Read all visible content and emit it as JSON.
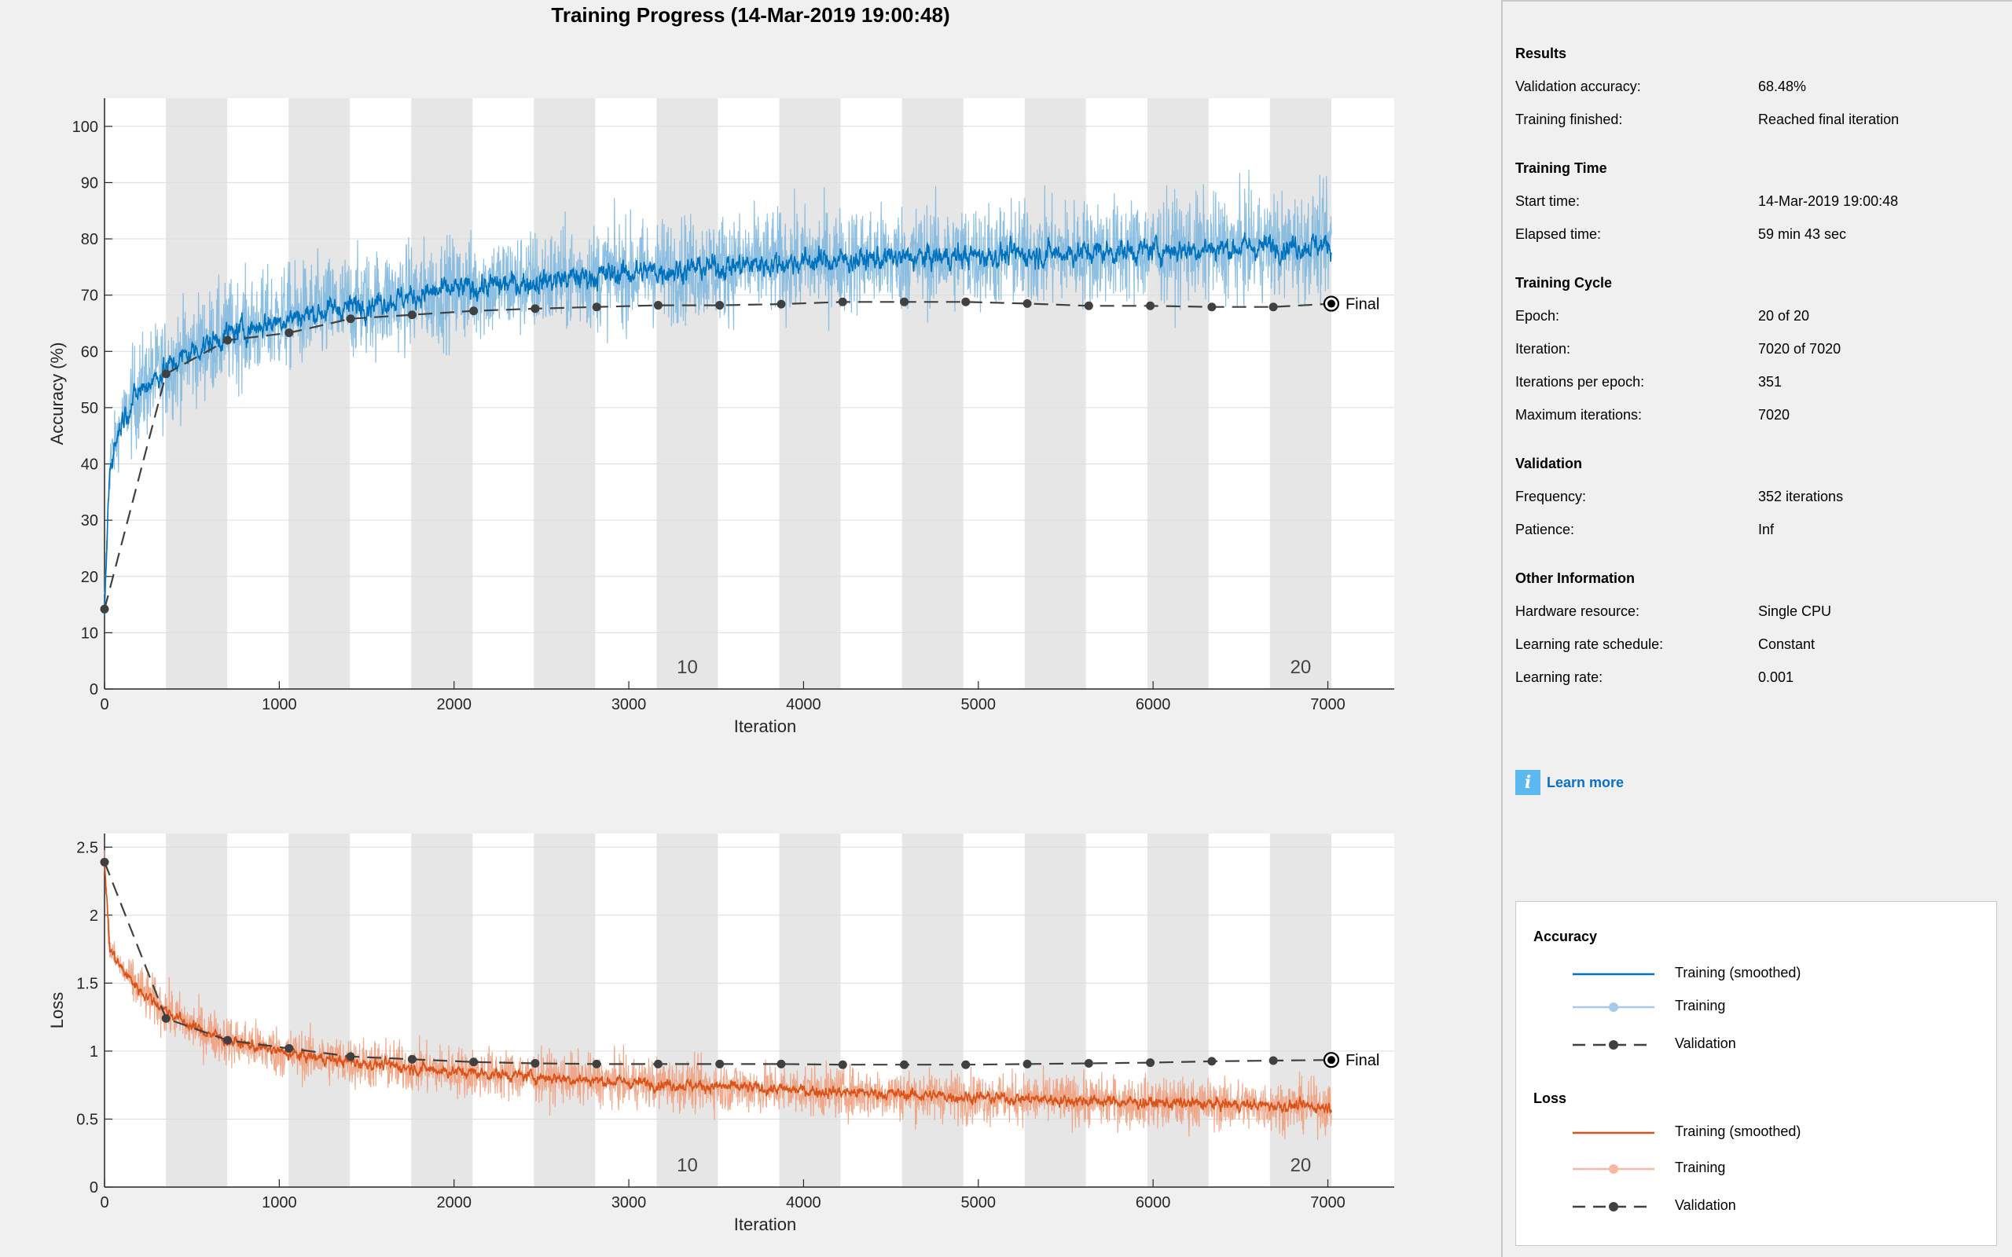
{
  "title": "Training Progress (14-Mar-2019 19:00:48)",
  "chart_data": [
    {
      "type": "line",
      "ylabel": "Accuracy (%)",
      "xlabel": "Iteration",
      "xlim": [
        0,
        7020
      ],
      "ylim": [
        0,
        105
      ],
      "xticks": [
        0,
        1000,
        2000,
        3000,
        4000,
        5000,
        6000,
        7000
      ],
      "yticks": [
        0,
        10,
        20,
        30,
        40,
        50,
        60,
        70,
        80,
        90,
        100
      ],
      "epoch_labels": [
        {
          "epoch": 10,
          "text": "10"
        },
        {
          "epoch": 20,
          "text": "20"
        }
      ],
      "final_label": "Final",
      "grid": true,
      "series": [
        {
          "name": "Training (smoothed)",
          "color": "#0072bd",
          "x": [
            0,
            30,
            100,
            200,
            351,
            500,
            702,
            1053,
            1404,
            2000,
            3000,
            4000,
            5000,
            6000,
            7020
          ],
          "values": [
            14,
            40,
            48,
            53,
            57,
            60,
            63,
            66,
            68,
            71,
            74,
            76,
            77,
            78,
            79
          ]
        },
        {
          "name": "Training",
          "color": "#7fb8de",
          "x": [
            0,
            30,
            100,
            200,
            351,
            500,
            702,
            1053,
            1404,
            2000,
            3000,
            4000,
            5000,
            6000,
            7020
          ],
          "values": [
            14,
            40,
            48,
            53,
            57,
            60,
            63,
            66,
            68,
            71,
            74,
            76,
            77,
            78,
            79
          ]
        },
        {
          "name": "Validation",
          "color": "#404040",
          "x": [
            0,
            352,
            704,
            1056,
            1408,
            1760,
            2112,
            2464,
            2816,
            3168,
            3520,
            3872,
            4224,
            4576,
            4928,
            5280,
            5632,
            5984,
            6336,
            6688,
            7020
          ],
          "values": [
            14.2,
            56,
            62,
            63.3,
            65.8,
            66.5,
            67.2,
            67.6,
            67.9,
            68.2,
            68.2,
            68.4,
            68.8,
            68.8,
            68.8,
            68.5,
            68.1,
            68.1,
            67.9,
            67.9,
            68.48
          ]
        }
      ]
    },
    {
      "type": "line",
      "ylabel": "Loss",
      "xlabel": "Iteration",
      "xlim": [
        0,
        7020
      ],
      "ylim": [
        0,
        2.6
      ],
      "xticks": [
        0,
        1000,
        2000,
        3000,
        4000,
        5000,
        6000,
        7000
      ],
      "yticks": [
        0,
        0.5,
        1,
        1.5,
        2,
        2.5
      ],
      "epoch_labels": [
        {
          "epoch": 10,
          "text": "10"
        },
        {
          "epoch": 20,
          "text": "20"
        }
      ],
      "final_label": "Final",
      "grid": true,
      "series": [
        {
          "name": "Training (smoothed)",
          "color": "#d95319",
          "x": [
            0,
            30,
            100,
            200,
            351,
            500,
            702,
            1053,
            1404,
            2000,
            3000,
            4000,
            5000,
            6000,
            7020
          ],
          "values": [
            2.4,
            1.75,
            1.6,
            1.45,
            1.3,
            1.18,
            1.08,
            0.98,
            0.92,
            0.85,
            0.77,
            0.71,
            0.66,
            0.62,
            0.59
          ]
        },
        {
          "name": "Training",
          "color": "#efa07e",
          "x": [
            0,
            30,
            100,
            200,
            351,
            500,
            702,
            1053,
            1404,
            2000,
            3000,
            4000,
            5000,
            6000,
            7020
          ],
          "values": [
            2.4,
            1.75,
            1.6,
            1.45,
            1.3,
            1.18,
            1.08,
            0.98,
            0.92,
            0.85,
            0.77,
            0.71,
            0.66,
            0.62,
            0.59
          ]
        },
        {
          "name": "Validation",
          "color": "#404040",
          "x": [
            0,
            352,
            704,
            1056,
            1408,
            1760,
            2112,
            2464,
            2816,
            3168,
            3520,
            3872,
            4224,
            4576,
            4928,
            5280,
            5632,
            5984,
            6336,
            6688,
            7020
          ],
          "values": [
            2.39,
            1.24,
            1.08,
            1.02,
            0.96,
            0.94,
            0.92,
            0.91,
            0.905,
            0.905,
            0.905,
            0.905,
            0.9,
            0.9,
            0.9,
            0.905,
            0.91,
            0.915,
            0.925,
            0.93,
            0.935
          ]
        }
      ]
    }
  ],
  "epochs": {
    "count": 20,
    "iterations_per_epoch": 351
  },
  "info": {
    "results_title": "Results",
    "validation_accuracy_label": "Validation accuracy:",
    "validation_accuracy": "68.48%",
    "training_finished_label": "Training finished:",
    "training_finished": "Reached final iteration",
    "time_title": "Training Time",
    "start_time_label": "Start time:",
    "start_time": "14-Mar-2019 19:00:48",
    "elapsed_label": "Elapsed time:",
    "elapsed": "59 min 43 sec",
    "cycle_title": "Training Cycle",
    "epoch_label": "Epoch:",
    "epoch": "20 of 20",
    "iteration_label": "Iteration:",
    "iteration": "7020 of 7020",
    "ipe_label": "Iterations per epoch:",
    "ipe": "351",
    "maxiter_label": "Maximum iterations:",
    "maxiter": "7020",
    "validation_title": "Validation",
    "frequency_label": "Frequency:",
    "frequency": "352 iterations",
    "patience_label": "Patience:",
    "patience": "Inf",
    "other_title": "Other Information",
    "hardware_label": "Hardware resource:",
    "hardware": "Single CPU",
    "schedule_label": "Learning rate schedule:",
    "schedule": "Constant",
    "lr_label": "Learning rate:",
    "lr": "0.001",
    "learn_more": "Learn more"
  },
  "legend": {
    "accuracy_title": "Accuracy",
    "loss_title": "Loss",
    "smoothed": "Training (smoothed)",
    "training": "Training",
    "validation": "Validation",
    "acc_smoothed_color": "#0072bd",
    "acc_training_color": "#a6cbea",
    "loss_smoothed_color": "#d95319",
    "loss_training_color": "#f4b9a0",
    "validation_color": "#404040"
  }
}
